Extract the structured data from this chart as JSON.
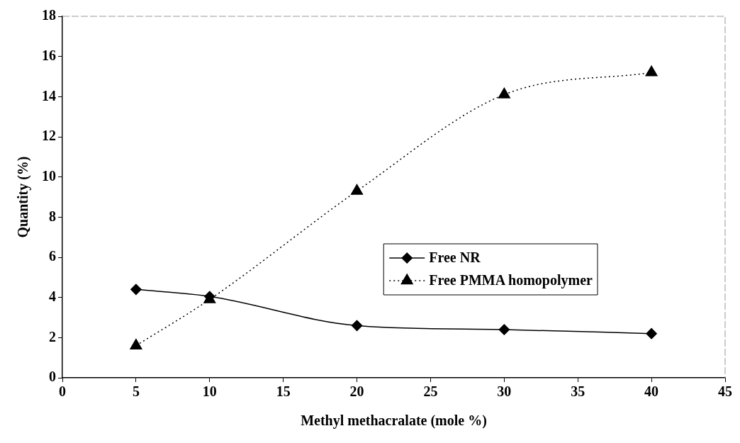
{
  "chart_data": {
    "type": "line",
    "xlabel": "Methyl methacralate (mole %)",
    "ylabel": "Quantity (%)",
    "x": [
      5,
      10,
      20,
      30,
      40
    ],
    "series": [
      {
        "name": "Free NR",
        "color": "#000000",
        "values": [
          4.4,
          4.05,
          2.6,
          2.4,
          2.2
        ],
        "marker": "diamond",
        "line_style": "solid"
      },
      {
        "name": "Free PMMA homopolymer",
        "color": "#000000",
        "values": [
          1.6,
          3.9,
          9.3,
          14.1,
          15.2
        ],
        "marker": "triangle",
        "line_style": "dotted"
      }
    ],
    "xlim": [
      0,
      45
    ],
    "xticks": [
      0,
      5,
      10,
      15,
      20,
      25,
      30,
      35,
      40,
      45
    ],
    "ylim": [
      0,
      18
    ],
    "yticks": [
      0,
      2,
      4,
      6,
      8,
      10,
      12,
      14,
      16,
      18
    ],
    "grid": false,
    "legend": "right"
  }
}
